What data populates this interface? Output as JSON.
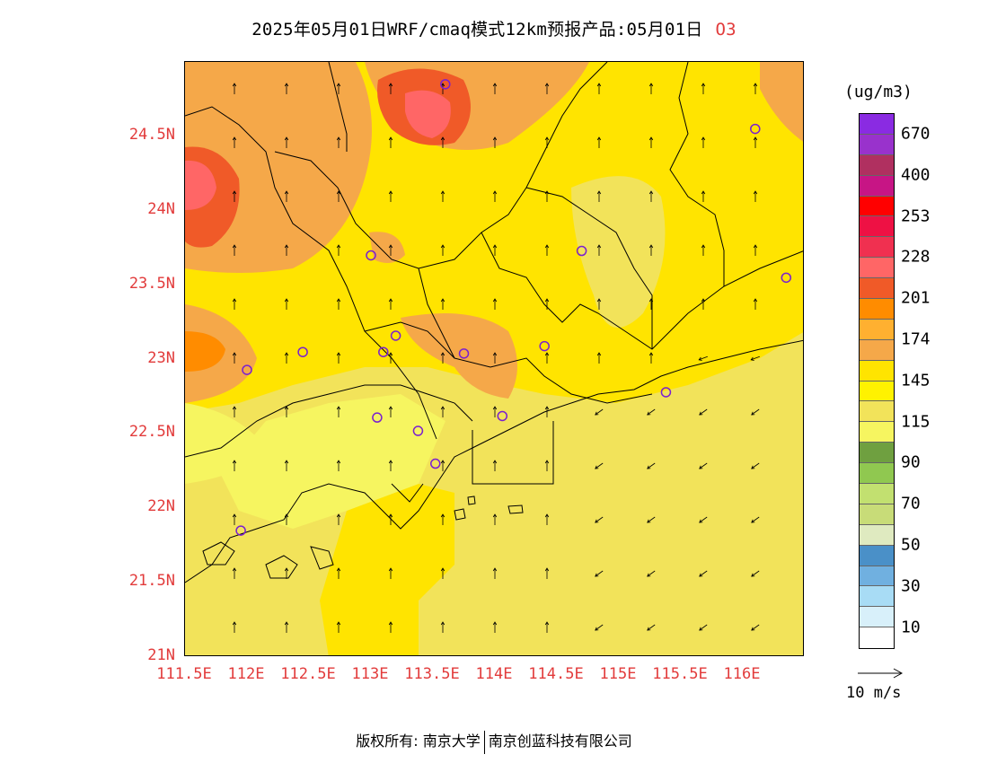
{
  "title": {
    "main": "2025年05月01日WRF/cmaq模式12km预报产品:05月01日",
    "species": "O3"
  },
  "map": {
    "lat_ticks": [
      "24.5N",
      "24N",
      "23.5N",
      "23N",
      "22.5N",
      "22N",
      "21.5N",
      "21N"
    ],
    "lon_ticks": [
      "111.5E",
      "112E",
      "112.5E",
      "113E",
      "113.5E",
      "114E",
      "114.5E",
      "115E",
      "115.5E",
      "116E"
    ],
    "lon_range": [
      111.5,
      116.5
    ],
    "lat_range": [
      21.0,
      25.0
    ],
    "stations": [
      {
        "lon": 113.6,
        "lat": 24.85
      },
      {
        "lon": 116.1,
        "lat": 24.55
      },
      {
        "lon": 114.7,
        "lat": 23.73
      },
      {
        "lon": 113.0,
        "lat": 23.7
      },
      {
        "lon": 116.35,
        "lat": 23.55
      },
      {
        "lon": 113.2,
        "lat": 23.16
      },
      {
        "lon": 114.4,
        "lat": 23.09
      },
      {
        "lon": 112.45,
        "lat": 23.05
      },
      {
        "lon": 113.1,
        "lat": 23.05
      },
      {
        "lon": 113.75,
        "lat": 23.04
      },
      {
        "lon": 112.0,
        "lat": 22.93
      },
      {
        "lon": 115.38,
        "lat": 22.78
      },
      {
        "lon": 113.05,
        "lat": 22.61
      },
      {
        "lon": 114.06,
        "lat": 22.62
      },
      {
        "lon": 113.38,
        "lat": 22.52
      },
      {
        "lon": 113.52,
        "lat": 22.3
      },
      {
        "lon": 111.95,
        "lat": 21.85
      }
    ]
  },
  "legend": {
    "units": "(ug/m3)",
    "colors": [
      "#8a2be2",
      "#9932cc",
      "#b03060",
      "#c71585",
      "#ff0000",
      "#ee1144",
      "#f03050",
      "#ff6666",
      "#f05a28",
      "#ff8c00",
      "#ffb030",
      "#f5a849",
      "#ffe400",
      "#fff200",
      "#f2e35a",
      "#f6f560",
      "#6fa040",
      "#90c850",
      "#c2e070",
      "#c8dc78",
      "#dfeac0",
      "#4a90c8",
      "#70b0e0",
      "#a8dcf5",
      "#d8f0fa",
      "#ffffff"
    ],
    "labels": [
      {
        "text": "670",
        "index": 1
      },
      {
        "text": "400",
        "index": 3
      },
      {
        "text": "253",
        "index": 5
      },
      {
        "text": "228",
        "index": 7
      },
      {
        "text": "201",
        "index": 9
      },
      {
        "text": "174",
        "index": 11
      },
      {
        "text": "145",
        "index": 13
      },
      {
        "text": "115",
        "index": 15
      },
      {
        "text": "90",
        "index": 17
      },
      {
        "text": "70",
        "index": 19
      },
      {
        "text": "50",
        "index": 21
      },
      {
        "text": "30",
        "index": 23
      },
      {
        "text": "10",
        "index": 25
      }
    ]
  },
  "wind_reference": "10 m/s",
  "footer": {
    "copyright": "版权所有: 南京大学",
    "company": "南京创蓝科技有限公司"
  }
}
